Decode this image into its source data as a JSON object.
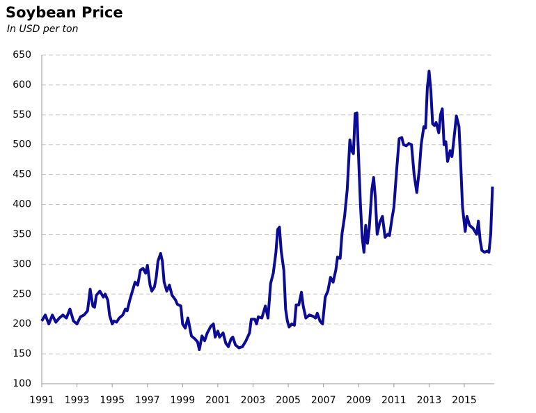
{
  "chart_data": {
    "type": "line",
    "title": "Soybean Price",
    "subtitle": "In USD per ton",
    "x": [
      1991.0,
      1991.2,
      1991.4,
      1991.6,
      1991.8,
      1992.0,
      1992.2,
      1992.4,
      1992.6,
      1992.8,
      1993.0,
      1993.2,
      1993.4,
      1993.6,
      1993.75,
      1993.9,
      1994.0,
      1994.1,
      1994.3,
      1994.5,
      1994.6,
      1994.75,
      1994.85,
      1995.0,
      1995.1,
      1995.25,
      1995.4,
      1995.6,
      1995.75,
      1995.85,
      1996.0,
      1996.15,
      1996.3,
      1996.45,
      1996.6,
      1996.75,
      1996.9,
      1997.0,
      1997.15,
      1997.25,
      1997.4,
      1997.5,
      1997.6,
      1997.75,
      1997.85,
      1997.95,
      1998.1,
      1998.25,
      1998.4,
      1998.6,
      1998.7,
      1998.9,
      1999.0,
      1999.15,
      1999.3,
      1999.5,
      1999.7,
      1999.85,
      1999.95,
      2000.1,
      2000.25,
      2000.4,
      2000.6,
      2000.75,
      2000.85,
      2001.0,
      2001.1,
      2001.3,
      2001.45,
      2001.6,
      2001.75,
      2001.85,
      2002.0,
      2002.2,
      2002.4,
      2002.6,
      2002.8,
      2002.9,
      2003.1,
      2003.2,
      2003.3,
      2003.5,
      2003.7,
      2003.85,
      2004.0,
      2004.15,
      2004.3,
      2004.4,
      2004.5,
      2004.6,
      2004.75,
      2004.85,
      2004.95,
      2005.05,
      2005.2,
      2005.35,
      2005.45,
      2005.6,
      2005.75,
      2005.85,
      2006.0,
      2006.2,
      2006.4,
      2006.55,
      2006.65,
      2006.8,
      2006.95,
      2007.1,
      2007.25,
      2007.4,
      2007.55,
      2007.7,
      2007.8,
      2007.95,
      2008.05,
      2008.2,
      2008.35,
      2008.5,
      2008.6,
      2008.7,
      2008.8,
      2008.9,
      2009.0,
      2009.1,
      2009.2,
      2009.3,
      2009.4,
      2009.5,
      2009.6,
      2009.75,
      2009.85,
      2009.95,
      2010.05,
      2010.2,
      2010.35,
      2010.5,
      2010.65,
      2010.75,
      2010.9,
      2011.0,
      2011.15,
      2011.3,
      2011.45,
      2011.55,
      2011.7,
      2011.85,
      2012.0,
      2012.15,
      2012.3,
      2012.45,
      2012.55,
      2012.7,
      2012.8,
      2012.9,
      2013.0,
      2013.1,
      2013.2,
      2013.3,
      2013.4,
      2013.55,
      2013.65,
      2013.75,
      2013.85,
      2013.95,
      2014.05,
      2014.2,
      2014.3,
      2014.45,
      2014.55,
      2014.7,
      2014.8,
      2014.9,
      2015.05,
      2015.15,
      2015.3,
      2015.5,
      2015.7,
      2015.8,
      2015.9,
      2016.0,
      2016.15,
      2016.3,
      2016.4,
      2016.5,
      2016.6
    ],
    "values": [
      205,
      215,
      200,
      215,
      203,
      210,
      215,
      210,
      225,
      205,
      200,
      212,
      215,
      222,
      258,
      230,
      228,
      248,
      255,
      245,
      250,
      240,
      215,
      200,
      205,
      203,
      210,
      215,
      225,
      222,
      240,
      255,
      270,
      265,
      290,
      293,
      285,
      298,
      265,
      255,
      262,
      278,
      305,
      318,
      305,
      270,
      255,
      265,
      248,
      240,
      233,
      230,
      200,
      193,
      210,
      180,
      175,
      170,
      157,
      180,
      172,
      185,
      196,
      200,
      178,
      188,
      178,
      185,
      168,
      162,
      175,
      178,
      165,
      160,
      162,
      172,
      185,
      208,
      208,
      200,
      212,
      210,
      230,
      210,
      268,
      285,
      320,
      358,
      362,
      322,
      290,
      225,
      205,
      195,
      200,
      198,
      232,
      232,
      253,
      230,
      210,
      215,
      213,
      210,
      218,
      205,
      200,
      245,
      255,
      278,
      270,
      290,
      312,
      310,
      350,
      380,
      425,
      508,
      490,
      485,
      552,
      553,
      475,
      400,
      345,
      320,
      365,
      335,
      360,
      425,
      445,
      410,
      350,
      370,
      380,
      345,
      350,
      348,
      378,
      395,
      455,
      510,
      512,
      500,
      498,
      502,
      500,
      450,
      420,
      460,
      500,
      530,
      528,
      595,
      623,
      590,
      535,
      532,
      537,
      520,
      550,
      560,
      500,
      505,
      472,
      490,
      480,
      520,
      548,
      530,
      465,
      395,
      355,
      380,
      365,
      360,
      350,
      372,
      340,
      323,
      320,
      322,
      320,
      350,
      430
    ],
    "color": "#0b0b96",
    "xlim": [
      1991,
      2016.7
    ],
    "xticks": [
      1991,
      1993,
      1995,
      1997,
      1999,
      2001,
      2003,
      2005,
      2007,
      2009,
      2011,
      2013,
      2015
    ],
    "ylim": [
      100,
      650
    ],
    "yticks": [
      100,
      150,
      200,
      250,
      300,
      350,
      400,
      450,
      500,
      550,
      600,
      650
    ],
    "grid": true
  }
}
